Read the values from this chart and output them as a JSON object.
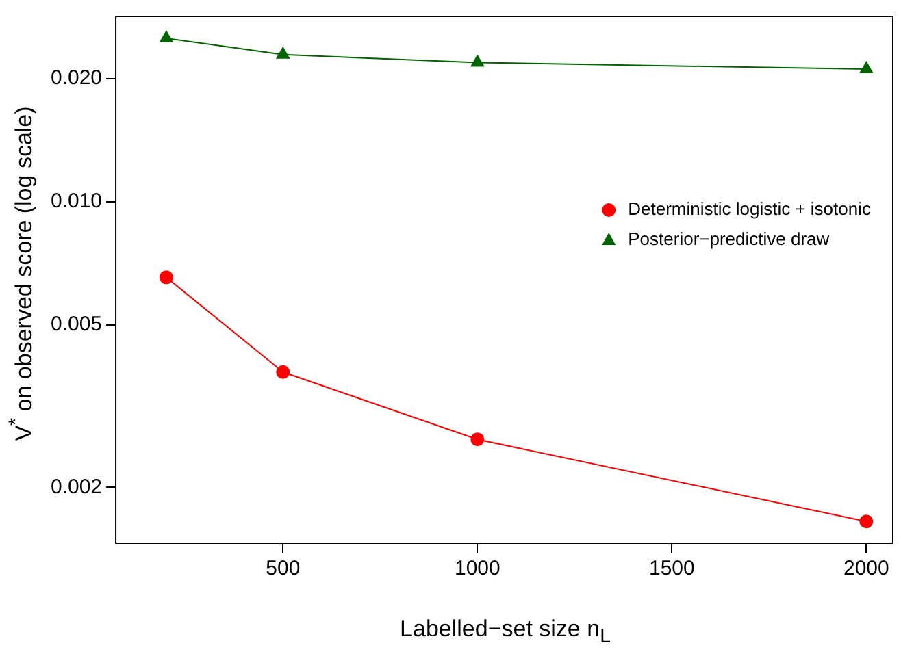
{
  "chart_data": {
    "type": "line",
    "xlabel": "Labelled−set size  n$_{L}$",
    "ylabel": "V$^{*}$ on observed score (log scale)",
    "x": [
      200,
      500,
      1000,
      2000
    ],
    "series": [
      {
        "name": "Deterministic logistic + isotonic",
        "color": "#ff0000",
        "marker": "circle",
        "values": [
          0.00653,
          0.00383,
          0.00262,
          0.00165
        ]
      },
      {
        "name": "Posterior−predictive draw",
        "color": "#006400",
        "marker": "triangle",
        "values": [
          0.0251,
          0.0229,
          0.0219,
          0.0211
        ]
      }
    ],
    "xlim": [
      70,
      2068
    ],
    "xticks": [
      500,
      1000,
      1500,
      2000
    ],
    "ylim": [
      0.00146,
      0.0284
    ],
    "yticks": [
      {
        "value": 0.002,
        "label": "0.002"
      },
      {
        "value": 0.005,
        "label": "0.005"
      },
      {
        "value": 0.01,
        "label": "0.010"
      },
      {
        "value": 0.02,
        "label": "0.020"
      }
    ],
    "log": "y",
    "grid": false,
    "legend": "right"
  }
}
